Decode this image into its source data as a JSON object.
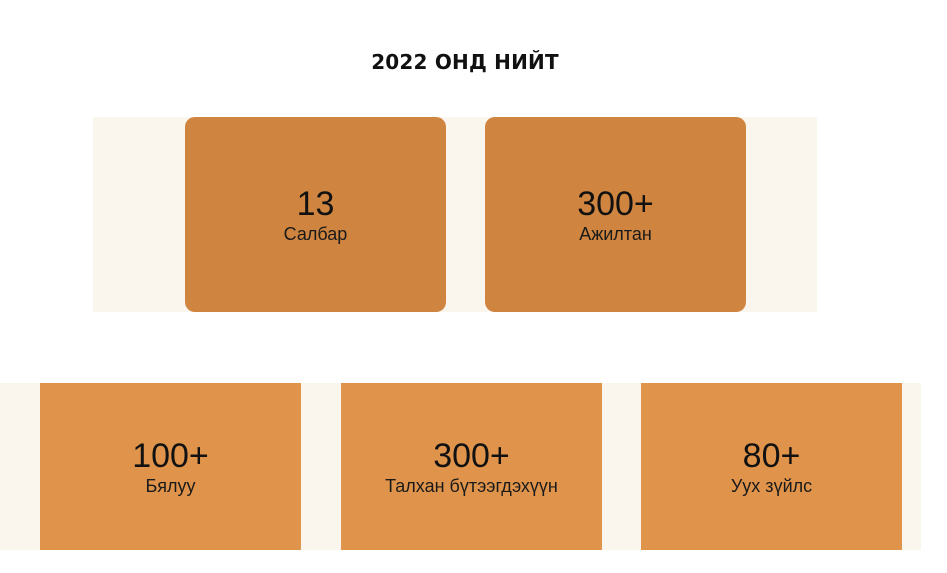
{
  "heading": "2022 ОНД НИЙТ",
  "stats_top": [
    {
      "value": "13",
      "label": "Салбар"
    },
    {
      "value": "300+",
      "label": "Ажилтан"
    }
  ],
  "stats_bottom": [
    {
      "value": "100+",
      "label": "Бялуу"
    },
    {
      "value": "300+",
      "label": "Талхан бүтээгдэхүүн"
    },
    {
      "value": "80+",
      "label": "Уух зүйлс"
    }
  ],
  "colors": {
    "card_top": "#cf853f",
    "card_bottom": "#e0944b",
    "band": "#faf5ed"
  }
}
